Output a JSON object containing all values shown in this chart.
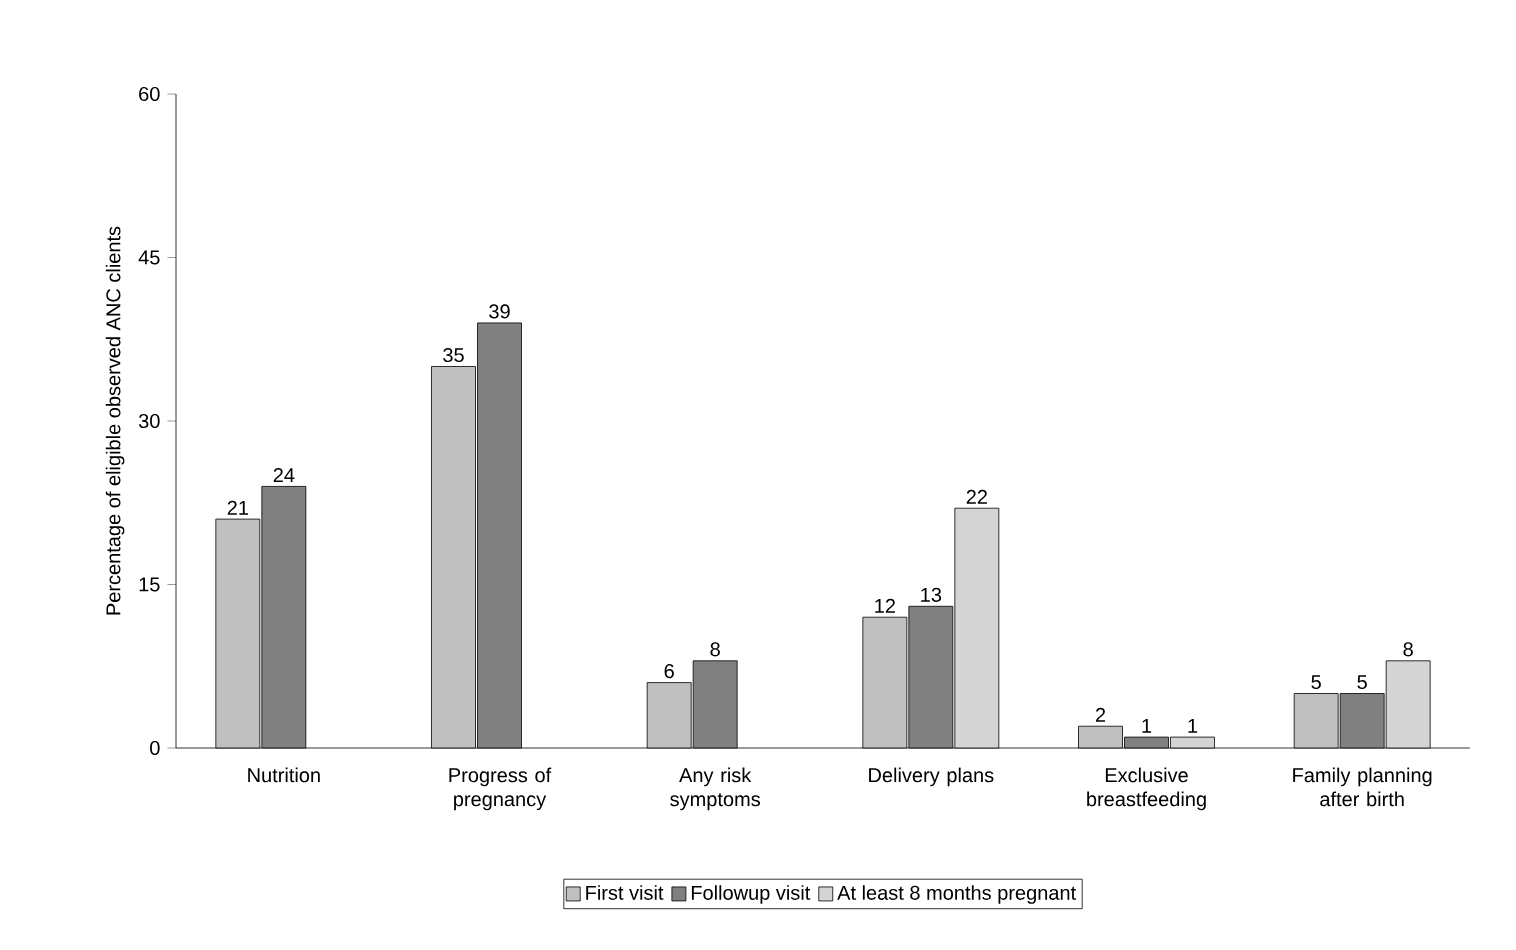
{
  "chart_data": {
    "type": "bar",
    "ylabel": "Percentage of eligible observed ANC clients",
    "categories": [
      "Nutrition",
      "Progress of pregnancy",
      "Any risk symptoms",
      "Delivery plans",
      "Exclusive breastfeeding",
      "Family planning after birth"
    ],
    "series": [
      {
        "name": "First visit",
        "color": "#c0c0c0",
        "values": [
          21,
          35,
          6,
          12,
          2,
          5
        ]
      },
      {
        "name": "Followup visit",
        "color": "#808080",
        "values": [
          24,
          39,
          8,
          13,
          1,
          5
        ]
      },
      {
        "name": "At least 8 months pregnant",
        "color": "#d4d4d4",
        "values": [
          null,
          null,
          null,
          22,
          1,
          8
        ]
      }
    ],
    "ylim": [
      0,
      60
    ],
    "yticks": [
      0,
      15,
      30,
      45,
      60
    ],
    "data_labels": true,
    "legend": "bottom",
    "grid": false
  }
}
